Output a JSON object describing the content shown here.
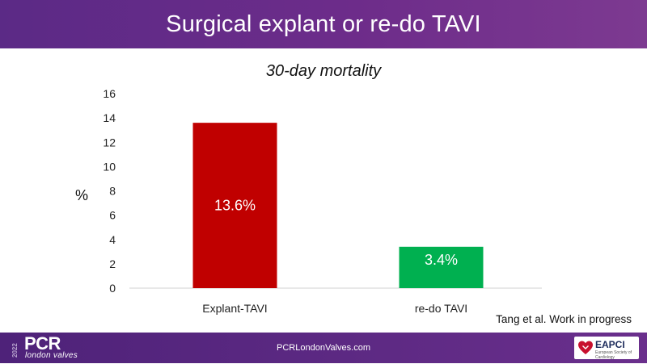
{
  "header": {
    "title": "Surgical explant or re-do TAVI"
  },
  "chart_data": {
    "type": "bar",
    "title": "30-day mortality",
    "ylabel": "%",
    "xlabel": "",
    "categories": [
      "Explant-TAVI",
      "re-do TAVI"
    ],
    "values": [
      13.6,
      3.4
    ],
    "data_labels": [
      "13.6%",
      "3.4%"
    ],
    "colors": [
      "#c00000",
      "#00b050"
    ],
    "ylim": [
      0,
      16
    ],
    "yticks": [
      "0",
      "2",
      "4",
      "6",
      "8",
      "10",
      "12",
      "14",
      "16"
    ],
    "grid": false,
    "legend": "none"
  },
  "citation": "Tang et al. Work in progress",
  "footer": {
    "year": "2022",
    "brand": "PCR",
    "brand_sub": "london valves",
    "url": "PCRLondonValves.com",
    "badge": "EAPCI",
    "badge_sub": "European Society of Cardiology"
  },
  "colors": {
    "header": "#6d2c8a",
    "footer": "#5e2a84",
    "bar_explant": "#c00000",
    "bar_redo": "#00b050"
  }
}
